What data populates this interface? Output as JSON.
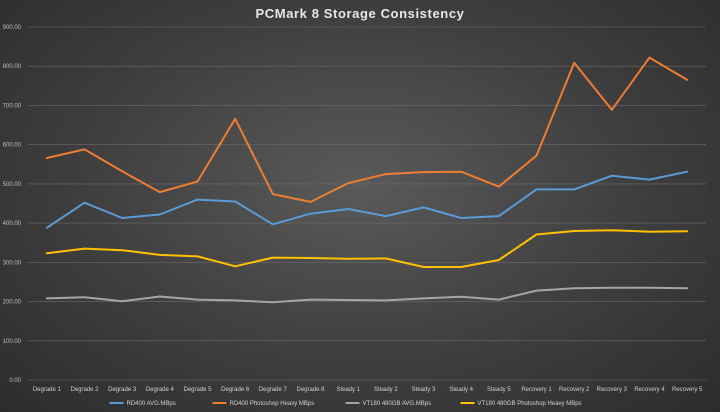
{
  "chart_data": {
    "type": "line",
    "title": "PCMark  8 Storage  Consistency",
    "xlabel": "",
    "ylabel": "",
    "ylim": [
      0,
      900
    ],
    "yticks": [
      "0.00",
      "100.00",
      "200.00",
      "300.00",
      "400.00",
      "500.00",
      "600.00",
      "700.00",
      "800.00",
      "900.00"
    ],
    "categories": [
      "Degrade 1",
      "Degrade 2",
      "Degrade 3",
      "Degrade 4",
      "Degrade 5",
      "Degrade 6",
      "Degrade 7",
      "Degrade 8",
      "Steady 1",
      "Steady 2",
      "Steady 3",
      "Steady 4",
      "Steady 5",
      "Recovery 1",
      "Recovery 2",
      "Recovery 3",
      "Recovery 4",
      "Recovery 5"
    ],
    "grid": true,
    "legend_position": "bottom",
    "series": [
      {
        "name": "RD400 AVG.MBps",
        "color": "#5b9bd5",
        "values": [
          388,
          452,
          413,
          422,
          460,
          455,
          397,
          424,
          436,
          418,
          440,
          413,
          418,
          486,
          486,
          521,
          511,
          531
        ]
      },
      {
        "name": "RD400 Photoshop Heavy MBps",
        "color": "#ed7d31",
        "values": [
          566,
          588,
          532,
          479,
          506,
          666,
          474,
          454,
          502,
          525,
          530,
          531,
          493,
          572,
          809,
          689,
          822,
          765
        ]
      },
      {
        "name": "VT180 480GB AVG.MBps",
        "color": "#a5a5a5",
        "values": [
          208,
          211,
          201,
          213,
          205,
          203,
          198,
          205,
          204,
          203,
          208,
          212,
          205,
          228,
          234,
          235,
          235,
          234
        ]
      },
      {
        "name": "VT180 480GB Photoshop Heavy MBps",
        "color": "#ffc000",
        "values": [
          323,
          335,
          331,
          319,
          315,
          290,
          312,
          311,
          309,
          310,
          288,
          288,
          306,
          371,
          380,
          382,
          378,
          379
        ]
      }
    ]
  }
}
